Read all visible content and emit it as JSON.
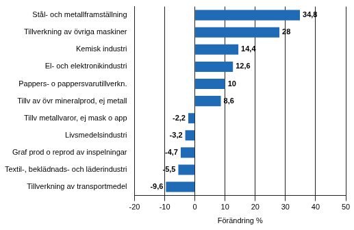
{
  "chart_data": {
    "type": "bar",
    "orientation": "horizontal",
    "categories": [
      "Stål- och metallframställning",
      "Tillverkning av övriga maskiner",
      "Kemisk industri",
      "El- och elektronikindustri",
      "Pappers- o pappersvarutillverkn.",
      "Tillv av övr mineralprod, ej metall",
      "Tillv metallvaror, ej mask o app",
      "Livsmedelsindustri",
      "Graf prod o reprod av inspelningar",
      "Textil-, beklädnads- och läderindustri",
      "Tillverkning av transportmedel"
    ],
    "values": [
      34.8,
      28,
      14.4,
      12.6,
      10,
      8.6,
      -2.2,
      -3.2,
      -4.7,
      -5.5,
      -9.6
    ],
    "value_labels": [
      "34,8",
      "28",
      "14,4",
      "12,6",
      "10",
      "8,6",
      "-2,2",
      "-3,2",
      "-4,7",
      "-5,5",
      "-9,6"
    ],
    "data_labels": true,
    "color": "#1f6bb5",
    "xlabel": "Förändring %",
    "xlim": [
      -20,
      50
    ],
    "xticks": [
      -20,
      -10,
      0,
      10,
      20,
      30,
      40,
      50
    ],
    "grid": true
  }
}
